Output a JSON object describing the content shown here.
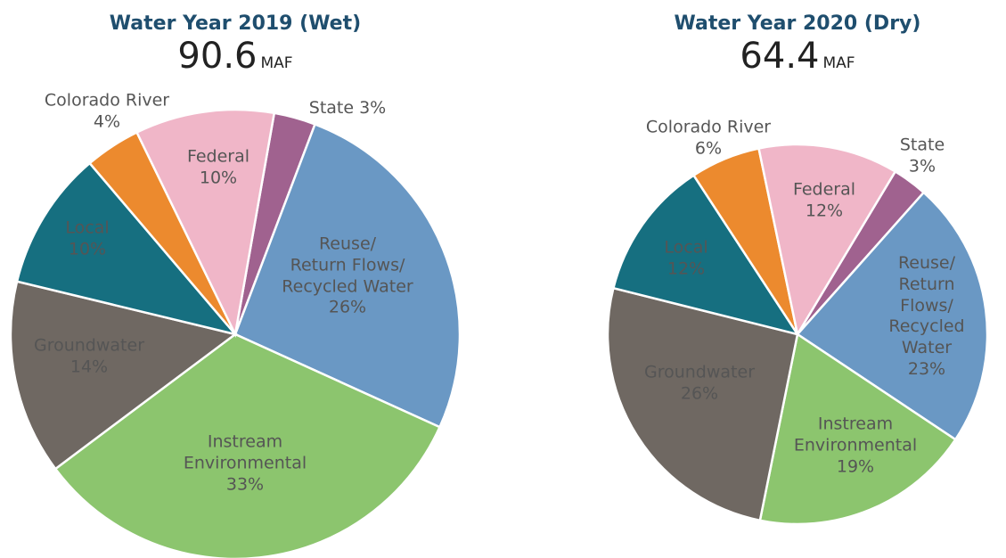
{
  "chart_data": [
    {
      "type": "pie",
      "title": "Water Year 2019 (Wet)",
      "total": "90.6",
      "unit": "MAF",
      "categories": [
        "State",
        "Reuse/\nReturn Flows/\nRecycled Water",
        "Instream\nEnvironmental",
        "Groundwater",
        "Local",
        "Colorado River",
        "Federal"
      ],
      "values": [
        3,
        26,
        33,
        14,
        10,
        4,
        10
      ],
      "value_labels": [
        "3%",
        "26%",
        "33%",
        "14%",
        "10%",
        "4%",
        "10%"
      ],
      "colors": [
        "#a0628f",
        "#6a98c4",
        "#8cc56e",
        "#6f6862",
        "#166f80",
        "#ec8a2e",
        "#f0b6c8"
      ]
    },
    {
      "type": "pie",
      "title": "Water Year 2020 (Dry)",
      "total": "64.4",
      "unit": "MAF",
      "categories": [
        "State",
        "Reuse/\nReturn Flows/\nRecycled Water",
        "Instream\nEnvironmental",
        "Groundwater",
        "Local",
        "Colorado River",
        "Federal"
      ],
      "values": [
        3,
        23,
        19,
        26,
        12,
        6,
        12
      ],
      "value_labels": [
        "3%",
        "23%",
        "19%",
        "26%",
        "12%",
        "6%",
        "12%"
      ],
      "colors": [
        "#a0628f",
        "#6a98c4",
        "#8cc56e",
        "#6f6862",
        "#166f80",
        "#ec8a2e",
        "#f0b6c8"
      ]
    }
  ]
}
